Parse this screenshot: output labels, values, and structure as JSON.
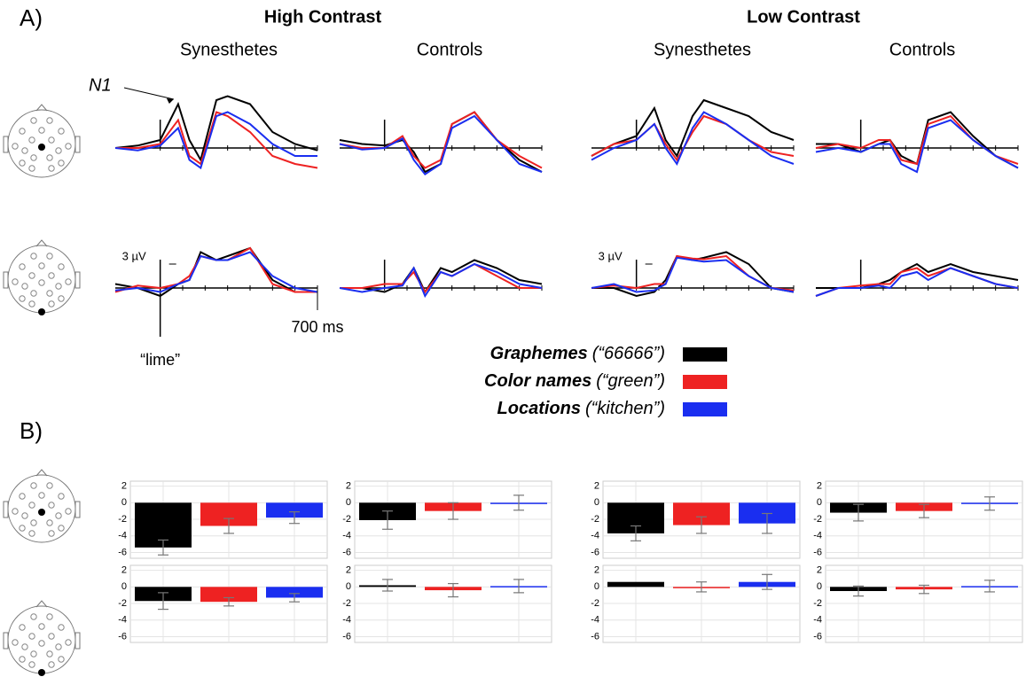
{
  "panel_labels": [
    "A)",
    "B)"
  ],
  "headings": {
    "groups": [
      "High Contrast",
      "Low Contrast"
    ],
    "subgroups": [
      "Synesthetes",
      "Controls",
      "Synesthetes",
      "Controls"
    ]
  },
  "legend": [
    {
      "name": "Graphemes",
      "example": "(“66666”)",
      "color": "#000000"
    },
    {
      "name": "Color names",
      "example": "(“green”)",
      "color": "#ee2222"
    },
    {
      "name": "Locations",
      "example": "(“kitchen”)",
      "color": "#1a2ef0"
    }
  ],
  "chart_data": [
    {
      "type": "line",
      "annotation": "N1",
      "x": [
        -200,
        -100,
        0,
        80,
        130,
        180,
        250,
        300,
        400,
        500,
        600,
        700
      ],
      "xlim": [
        -200,
        700
      ],
      "xticks": [
        0,
        100,
        200,
        300,
        400,
        500,
        600,
        700
      ],
      "series": [
        {
          "color": "#000000",
          "values": [
            0,
            0.3,
            1,
            5.5,
            1,
            -1.5,
            6,
            6.5,
            5.5,
            2,
            0.5,
            -0.3
          ]
        },
        {
          "color": "#ee2222",
          "values": [
            0,
            0,
            0.5,
            3.5,
            -1,
            -2,
            4.5,
            4,
            2,
            -1,
            -2,
            -2.5
          ]
        },
        {
          "color": "#1a2ef0",
          "values": [
            0,
            -0.3,
            0.3,
            2.5,
            -1.5,
            -2.5,
            4,
            4.5,
            3,
            0.5,
            -1,
            -1
          ]
        }
      ]
    },
    {
      "type": "line",
      "x": [
        -200,
        -100,
        0,
        80,
        130,
        180,
        250,
        300,
        400,
        500,
        600,
        700
      ],
      "xlim": [
        -200,
        700
      ],
      "xticks": [
        0,
        100,
        200,
        300,
        400,
        500,
        600,
        700
      ],
      "series": [
        {
          "color": "#000000",
          "values": [
            1,
            0.5,
            0.3,
            1,
            -0.5,
            -3,
            -2,
            3,
            4.5,
            1,
            -1.5,
            -3
          ]
        },
        {
          "color": "#ee2222",
          "values": [
            0.5,
            0,
            0,
            1.5,
            -1,
            -2.5,
            -1.5,
            3,
            4.5,
            1,
            -1,
            -2.5
          ]
        },
        {
          "color": "#1a2ef0",
          "values": [
            0.5,
            -0.2,
            0,
            1.2,
            -1.5,
            -3.3,
            -2,
            2.5,
            4,
            1,
            -2,
            -3
          ]
        }
      ]
    },
    {
      "type": "line",
      "x": [
        -200,
        -100,
        0,
        80,
        130,
        180,
        250,
        300,
        400,
        500,
        600,
        700
      ],
      "xlim": [
        -200,
        700
      ],
      "xticks": [
        0,
        100,
        200,
        300,
        400,
        500,
        600,
        700
      ],
      "series": [
        {
          "color": "#000000",
          "values": [
            -1,
            0.5,
            1.5,
            5,
            1,
            -1,
            4,
            6,
            5,
            4,
            2,
            1
          ]
        },
        {
          "color": "#ee2222",
          "values": [
            -1,
            0.5,
            1,
            3,
            0.5,
            -1.5,
            2,
            4,
            3,
            1,
            -0.5,
            -1
          ]
        },
        {
          "color": "#1a2ef0",
          "values": [
            -1.5,
            0,
            1,
            3,
            0,
            -2,
            2.5,
            4.5,
            3,
            1,
            -1,
            -2
          ]
        }
      ]
    },
    {
      "type": "line",
      "x": [
        -200,
        -100,
        0,
        80,
        130,
        180,
        250,
        300,
        400,
        500,
        600,
        700
      ],
      "xlim": [
        -200,
        700
      ],
      "xticks": [
        0,
        100,
        200,
        300,
        400,
        500,
        600,
        700
      ],
      "series": [
        {
          "color": "#000000",
          "values": [
            0.5,
            0.5,
            -0.5,
            0.5,
            1,
            -1,
            -2,
            3.5,
            4.5,
            1.5,
            -1,
            -2.5
          ]
        },
        {
          "color": "#ee2222",
          "values": [
            0,
            0.5,
            0,
            1,
            1,
            -1.5,
            -2,
            3,
            4,
            1,
            -1,
            -2
          ]
        },
        {
          "color": "#1a2ef0",
          "values": [
            -0.5,
            0,
            -0.5,
            0.5,
            0.5,
            -2,
            -3,
            2.5,
            3.5,
            1,
            -1,
            -2.5
          ]
        }
      ]
    },
    {
      "type": "line",
      "scale_label": "3 µV",
      "end_label": "700 ms",
      "onset_label": "“lime”",
      "x": [
        -200,
        -100,
        0,
        80,
        130,
        180,
        250,
        300,
        400,
        500,
        600,
        700
      ],
      "xlim": [
        -200,
        700
      ],
      "xticks": [
        0,
        100,
        200,
        300,
        400,
        500,
        600,
        700
      ],
      "series": [
        {
          "color": "#000000",
          "values": [
            0.5,
            0,
            -1,
            0.5,
            1,
            4.5,
            3.5,
            4,
            5,
            1,
            -0.5,
            -0.5
          ]
        },
        {
          "color": "#ee2222",
          "values": [
            -0.5,
            0.3,
            0,
            0.5,
            1.5,
            4,
            3.5,
            3.5,
            5,
            0.5,
            -0.5,
            -0.5
          ]
        },
        {
          "color": "#1a2ef0",
          "values": [
            -0.3,
            0,
            -0.5,
            0.5,
            1,
            4,
            3.5,
            3.5,
            4.5,
            1.5,
            0,
            -0.5
          ]
        }
      ]
    },
    {
      "type": "line",
      "x": [
        -200,
        -100,
        0,
        80,
        130,
        180,
        250,
        300,
        400,
        500,
        600,
        700
      ],
      "xlim": [
        -200,
        700
      ],
      "xticks": [
        0,
        100,
        200,
        300,
        400,
        500,
        600,
        700
      ],
      "series": [
        {
          "color": "#000000",
          "values": [
            0,
            0,
            -0.5,
            0.5,
            2.5,
            -0.5,
            2.5,
            2,
            3.5,
            2.5,
            1,
            0.5
          ]
        },
        {
          "color": "#ee2222",
          "values": [
            0,
            0,
            0.5,
            0.5,
            2,
            -0.5,
            2,
            1.5,
            3,
            1.5,
            0,
            0
          ]
        },
        {
          "color": "#1a2ef0",
          "values": [
            0,
            -0.5,
            0,
            0.3,
            2.5,
            -1,
            2,
            1.5,
            3,
            2,
            0.5,
            0
          ]
        }
      ]
    },
    {
      "type": "line",
      "scale_label": "3 µV",
      "x": [
        -200,
        -100,
        0,
        80,
        130,
        180,
        250,
        300,
        400,
        500,
        600,
        700
      ],
      "xlim": [
        -200,
        700
      ],
      "xticks": [
        0,
        100,
        200,
        300,
        400,
        500,
        600,
        700
      ],
      "series": [
        {
          "color": "#000000",
          "values": [
            0,
            0,
            -1,
            -0.5,
            1,
            4,
            3.5,
            3.8,
            4.5,
            3,
            0,
            -0.5
          ]
        },
        {
          "color": "#ee2222",
          "values": [
            0,
            0.3,
            0,
            0.5,
            0.5,
            4,
            3.7,
            3.6,
            4,
            1.5,
            0,
            -0.3
          ]
        },
        {
          "color": "#1a2ef0",
          "values": [
            0,
            0.5,
            -0.5,
            -0.3,
            0.5,
            3.8,
            3.5,
            3.3,
            3.5,
            1.5,
            0,
            -0.5
          ]
        }
      ]
    },
    {
      "type": "line",
      "x": [
        -200,
        -100,
        0,
        80,
        130,
        180,
        250,
        300,
        400,
        500,
        600,
        700
      ],
      "xlim": [
        -200,
        700
      ],
      "xticks": [
        0,
        100,
        200,
        300,
        400,
        500,
        600,
        700
      ],
      "series": [
        {
          "color": "#000000",
          "values": [
            0,
            0,
            0,
            0.5,
            1,
            2,
            3,
            2,
            3,
            2,
            1.5,
            1
          ]
        },
        {
          "color": "#ee2222",
          "values": [
            -1,
            0,
            0.3,
            0.5,
            0.5,
            2,
            2.5,
            1.5,
            2.5,
            1.5,
            0.5,
            0
          ]
        },
        {
          "color": "#1a2ef0",
          "values": [
            -1,
            0,
            0,
            0.3,
            0,
            1.5,
            2,
            1,
            2.5,
            1.5,
            0.5,
            0
          ]
        }
      ]
    },
    {
      "type": "bar",
      "values": [
        -5.4,
        -2.8,
        -1.8
      ],
      "errors": [
        0.9,
        0.9,
        0.7
      ],
      "colors": [
        "#000000",
        "#ee2222",
        "#1a2ef0"
      ],
      "ylim": [
        -6.7,
        2.6
      ],
      "yticks": [
        2,
        0,
        -2,
        -4,
        -6
      ]
    },
    {
      "type": "bar",
      "values": [
        -2.1,
        -1,
        0
      ],
      "errors": [
        1.1,
        1,
        0.9
      ],
      "colors": [
        "#000000",
        "#ee2222",
        "#1a2ef0"
      ],
      "ylim": [
        -6.7,
        2.6
      ],
      "yticks": [
        2,
        0,
        -2,
        -4,
        -6
      ]
    },
    {
      "type": "bar",
      "values": [
        -3.7,
        -2.7,
        -2.5
      ],
      "errors": [
        0.9,
        1,
        1.2
      ],
      "colors": [
        "#000000",
        "#ee2222",
        "#1a2ef0"
      ],
      "ylim": [
        -6.7,
        2.6
      ],
      "yticks": [
        2,
        0,
        -2,
        -4,
        -6
      ]
    },
    {
      "type": "bar",
      "values": [
        -1.2,
        -1,
        -0.1
      ],
      "errors": [
        1,
        0.8,
        0.8
      ],
      "colors": [
        "#000000",
        "#ee2222",
        "#1a2ef0"
      ],
      "ylim": [
        -6.7,
        2.6
      ],
      "yticks": [
        2,
        0,
        -2,
        -4,
        -6
      ]
    },
    {
      "type": "bar",
      "values": [
        -1.7,
        -1.8,
        -1.3
      ],
      "errors": [
        1,
        0.5,
        0.5
      ],
      "colors": [
        "#000000",
        "#ee2222",
        "#1a2ef0"
      ],
      "ylim": [
        -6.7,
        2.6
      ],
      "yticks": [
        2,
        0,
        -2,
        -4,
        -6
      ]
    },
    {
      "type": "bar",
      "values": [
        0.2,
        -0.4,
        0.1
      ],
      "errors": [
        0.7,
        0.8,
        0.8
      ],
      "colors": [
        "#000000",
        "#ee2222",
        "#1a2ef0"
      ],
      "ylim": [
        -6.7,
        2.6
      ],
      "yticks": [
        2,
        0,
        -2,
        -4,
        -6
      ]
    },
    {
      "type": "bar",
      "values": [
        0.6,
        0,
        0.6
      ],
      "errors": [
        null,
        0.6,
        0.9
      ],
      "colors": [
        "#000000",
        "#ee2222",
        "#1a2ef0"
      ],
      "ylim": [
        -6.7,
        2.6
      ],
      "yticks": [
        2,
        0,
        -2,
        -4,
        -6
      ]
    },
    {
      "type": "bar",
      "values": [
        -0.5,
        -0.3,
        0.1
      ],
      "errors": [
        0.6,
        0.5,
        0.7
      ],
      "colors": [
        "#000000",
        "#ee2222",
        "#1a2ef0"
      ],
      "ylim": [
        -6.7,
        2.6
      ],
      "yticks": [
        2,
        0,
        -2,
        -4,
        -6
      ]
    }
  ]
}
